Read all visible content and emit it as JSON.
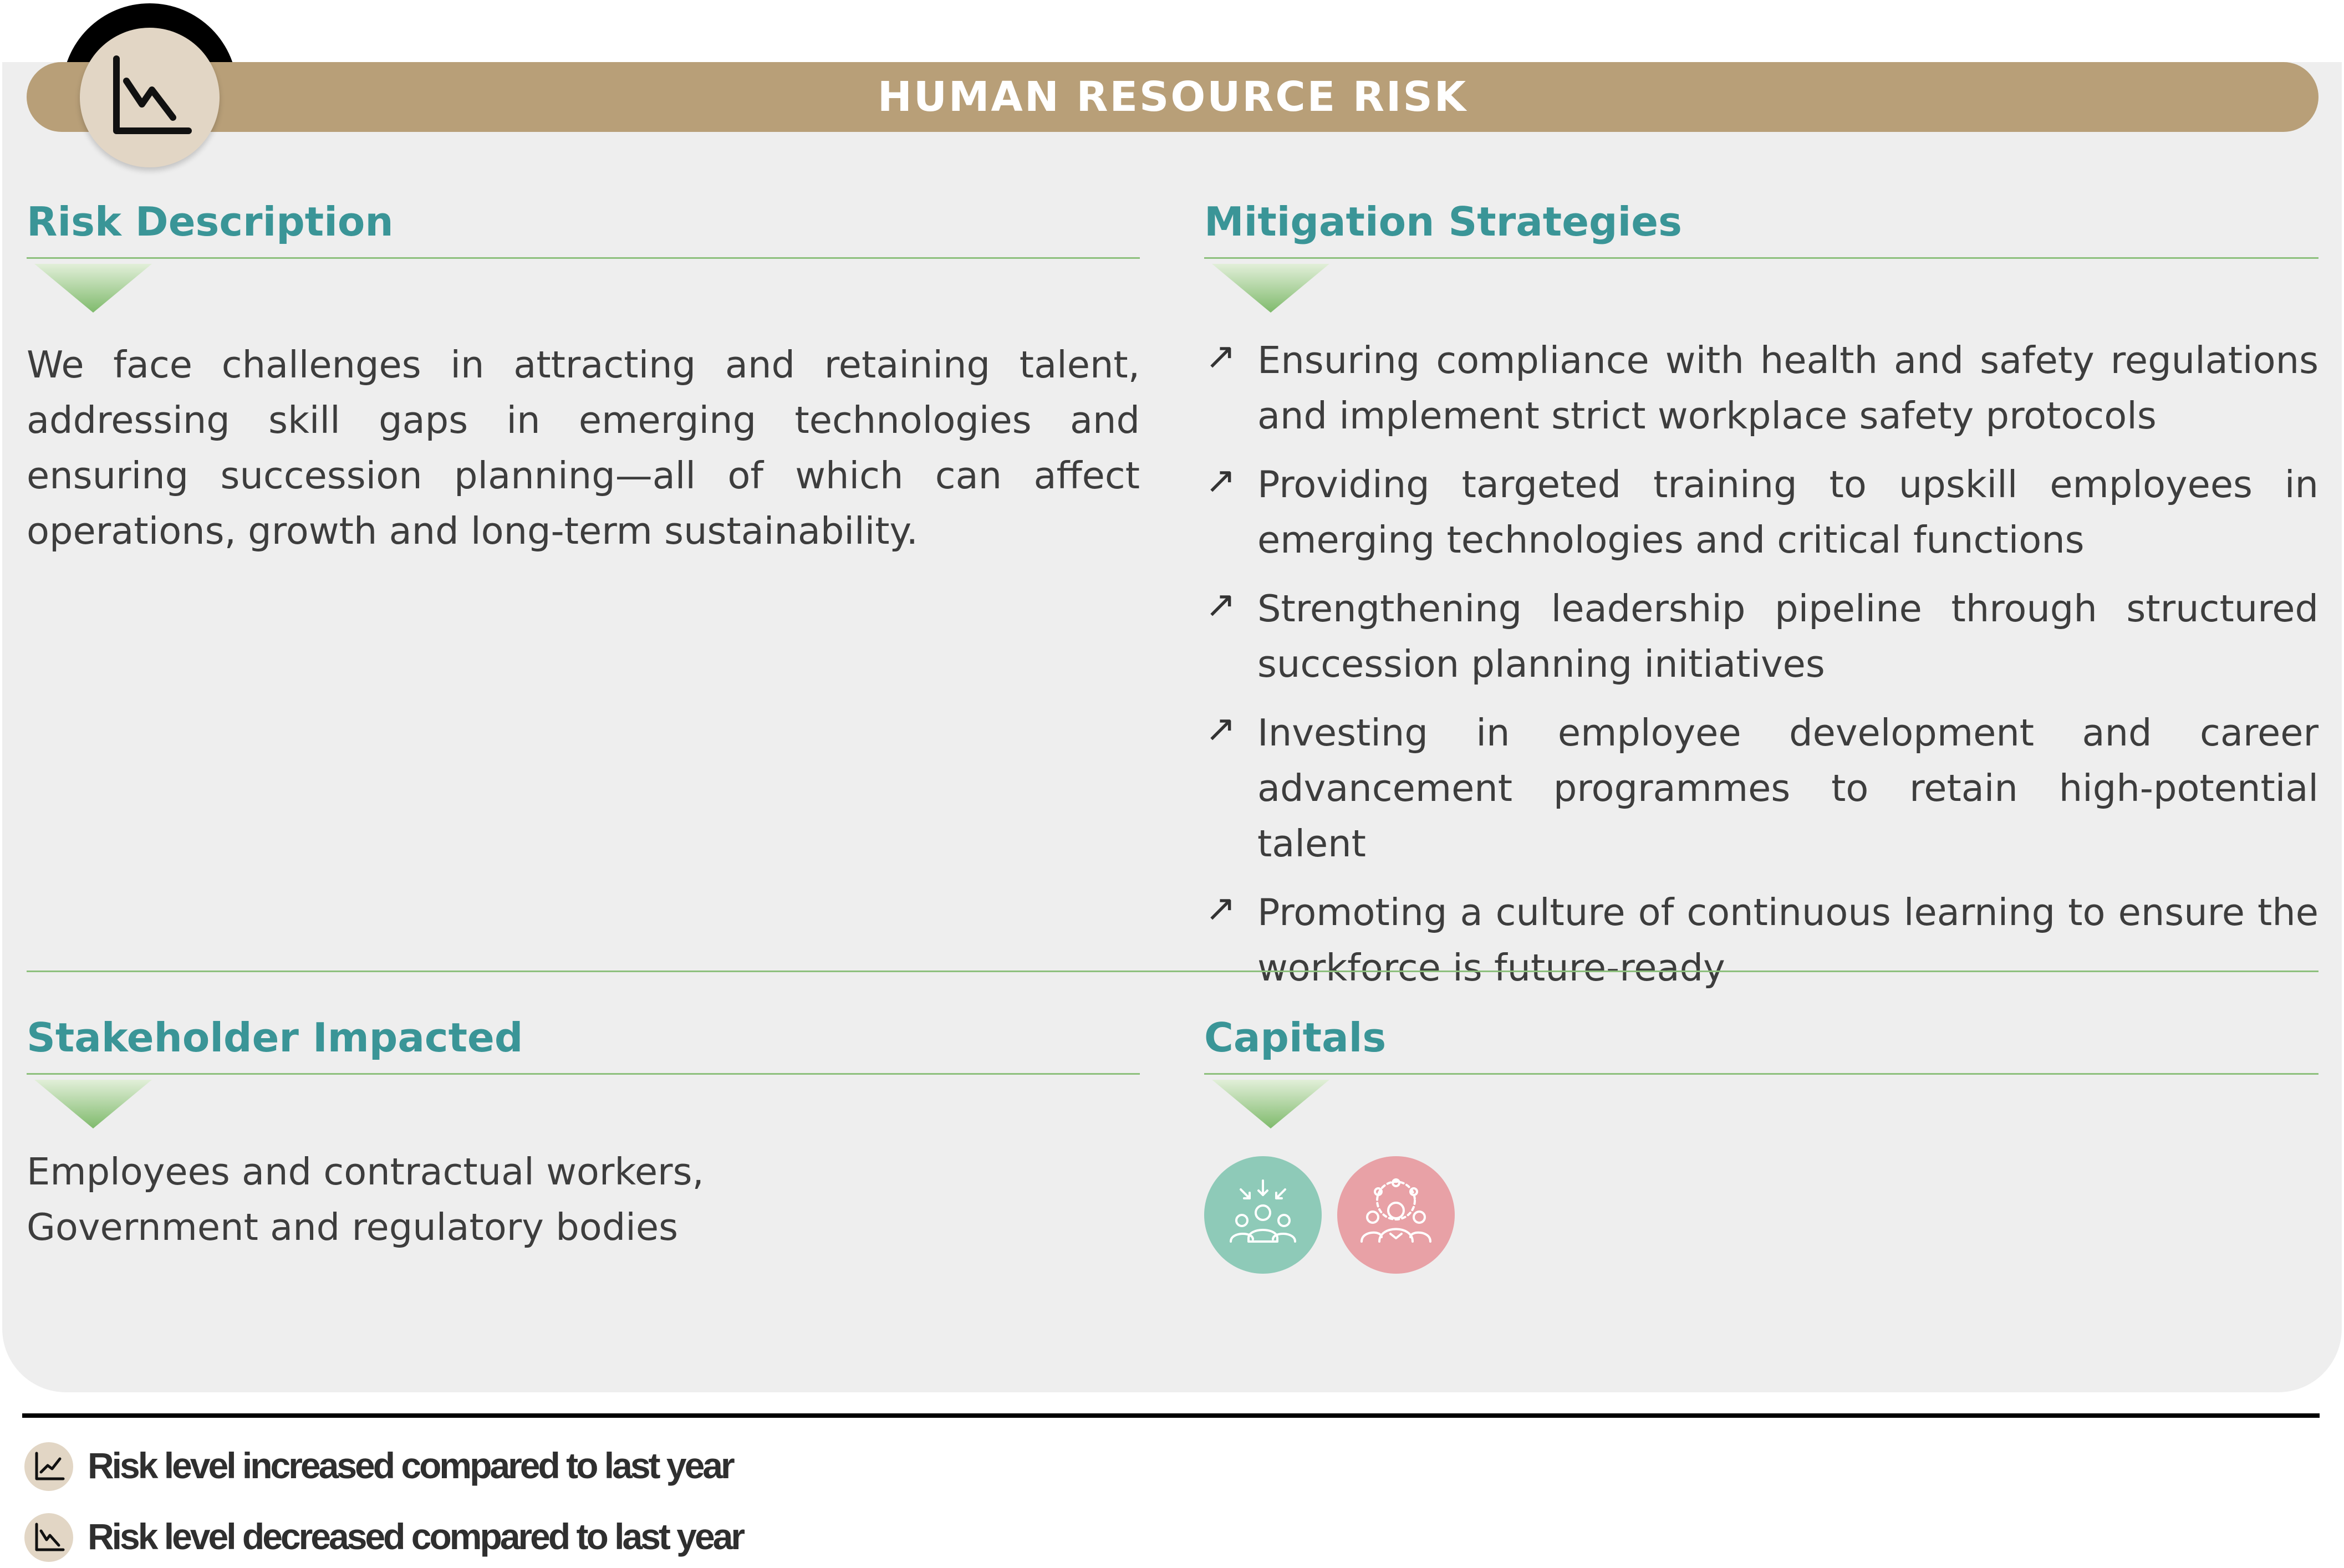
{
  "header": {
    "title": "HUMAN RESOURCE RISK",
    "risk_trend_icon": "trend-down-icon"
  },
  "risk_description": {
    "title": "Risk Description",
    "text": "We face challenges in attracting and retaining talent, addressing skill gaps in emerging technologies and ensuring succession planning—all of which can affect operations, growth and long-term sustainability."
  },
  "mitigation": {
    "title": "Mitigation Strategies",
    "bullet_glyph": "↗",
    "items": [
      "Ensuring compliance with health and safety regulations and implement strict workplace safety protocols",
      "Providing targeted training to upskill employees in emerging technologies and critical functions",
      "Strengthening leadership pipeline through structured succession planning initiatives",
      "Investing in employee development and career advancement programmes to retain high-potential talent",
      "Promoting a culture of continuous learning to ensure the workforce is future-ready"
    ]
  },
  "stakeholders": {
    "title": "Stakeholder Impacted",
    "lines": [
      "Employees and contractual workers,",
      "Government and regulatory bodies"
    ]
  },
  "capitals": {
    "title": "Capitals",
    "items": [
      {
        "icon": "human-capital-icon",
        "color": "#8ecab8"
      },
      {
        "icon": "social-capital-icon",
        "color": "#e8a1a6"
      }
    ]
  },
  "legend": {
    "items": [
      {
        "icon": "trend-up-icon",
        "label": "Risk level increased compared to last year"
      },
      {
        "icon": "trend-down-icon",
        "label": "Risk level decreased compared to last year"
      }
    ]
  },
  "colors": {
    "header": "#b89f78",
    "section_title": "#3a9597",
    "rule": "#8dc07d",
    "card": "#eeeeee"
  }
}
